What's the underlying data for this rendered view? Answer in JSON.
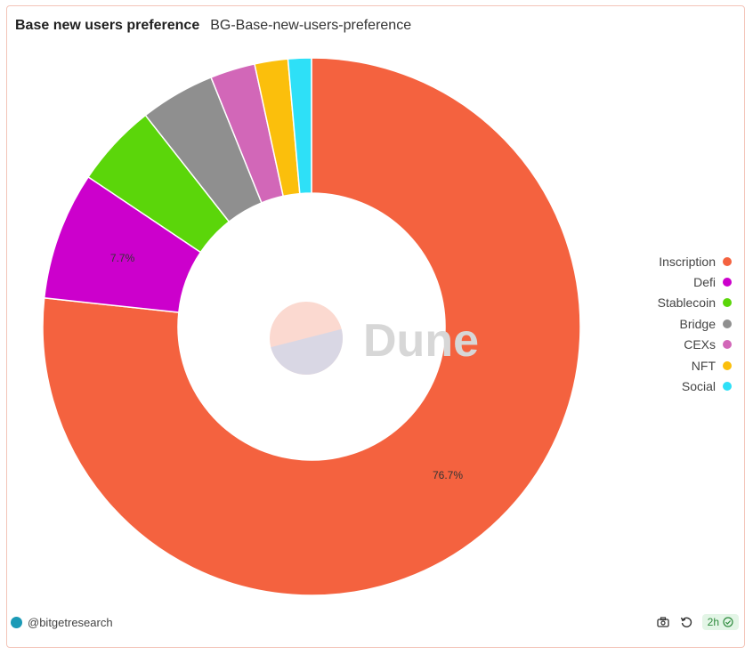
{
  "header": {
    "title": "Base new users preference",
    "subtitle": "BG-Base-new-users-preference"
  },
  "chart_data": {
    "type": "pie",
    "donut": true,
    "title": "Base new users preference",
    "categories": [
      "Inscription",
      "Defi",
      "Stablecoin",
      "Bridge",
      "CEXs",
      "NFT",
      "Social"
    ],
    "values": [
      76.7,
      7.7,
      5.0,
      4.5,
      2.7,
      2.0,
      1.4
    ],
    "colors": [
      "#f4623f",
      "#cc00cc",
      "#5bd60a",
      "#8f8f8f",
      "#d267b8",
      "#fbbf0c",
      "#2ee0f7"
    ],
    "data_labels": [
      "76.7%",
      "7.7%",
      "",
      "",
      "",
      "",
      ""
    ],
    "legend_position": "right"
  },
  "watermark": {
    "text": "Dune"
  },
  "footer": {
    "author": "@bitgetresearch",
    "refresh_age": "2h",
    "icons": [
      "camera-icon",
      "refresh-icon",
      "check-circle-icon"
    ]
  }
}
